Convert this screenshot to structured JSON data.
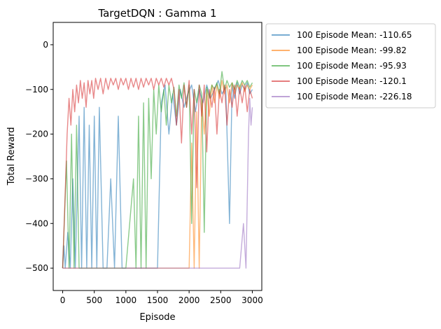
{
  "chart_data": {
    "type": "line",
    "title": "TargetDQN : Gamma 1",
    "xlabel": "Episode",
    "ylabel": "Total Reward",
    "xlim": [
      -150,
      3150
    ],
    "ylim": [
      -550,
      50
    ],
    "xticks": [
      0,
      500,
      1000,
      1500,
      2000,
      2500,
      3000
    ],
    "yticks": [
      0,
      -100,
      -200,
      -300,
      -400,
      -500
    ],
    "legend_position": "outside-right",
    "series": [
      {
        "name": "100 Episode Mean: -110.65",
        "color": "#1f77b4",
        "points": [
          [
            0,
            -500
          ],
          [
            20,
            -450
          ],
          [
            40,
            -500
          ],
          [
            80,
            -420
          ],
          [
            120,
            -500
          ],
          [
            160,
            -300
          ],
          [
            200,
            -500
          ],
          [
            260,
            -160
          ],
          [
            300,
            -500
          ],
          [
            340,
            -140
          ],
          [
            380,
            -500
          ],
          [
            420,
            -180
          ],
          [
            460,
            -500
          ],
          [
            500,
            -160
          ],
          [
            540,
            -500
          ],
          [
            580,
            -140
          ],
          [
            640,
            -500
          ],
          [
            700,
            -500
          ],
          [
            760,
            -300
          ],
          [
            820,
            -500
          ],
          [
            880,
            -160
          ],
          [
            940,
            -500
          ],
          [
            1000,
            -500
          ],
          [
            1100,
            -500
          ],
          [
            1200,
            -500
          ],
          [
            1300,
            -500
          ],
          [
            1400,
            -500
          ],
          [
            1500,
            -500
          ],
          [
            1560,
            -130
          ],
          [
            1620,
            -90
          ],
          [
            1680,
            -200
          ],
          [
            1740,
            -110
          ],
          [
            1800,
            -180
          ],
          [
            1860,
            -100
          ],
          [
            1920,
            -140
          ],
          [
            1980,
            -110
          ],
          [
            2040,
            -90
          ],
          [
            2100,
            -150
          ],
          [
            2160,
            -100
          ],
          [
            2220,
            -130
          ],
          [
            2280,
            -90
          ],
          [
            2340,
            -120
          ],
          [
            2400,
            -100
          ],
          [
            2460,
            -80
          ],
          [
            2520,
            -110
          ],
          [
            2580,
            -95
          ],
          [
            2640,
            -400
          ],
          [
            2680,
            -90
          ],
          [
            2720,
            -120
          ],
          [
            2760,
            -85
          ],
          [
            2800,
            -110
          ],
          [
            2840,
            -90
          ],
          [
            2880,
            -100
          ],
          [
            2920,
            -85
          ],
          [
            2960,
            -110
          ],
          [
            3000,
            -100
          ]
        ]
      },
      {
        "name": "100 Episode Mean: -99.82",
        "color": "#ff7f0e",
        "points": [
          [
            0,
            -500
          ],
          [
            200,
            -500
          ],
          [
            400,
            -500
          ],
          [
            600,
            -500
          ],
          [
            800,
            -500
          ],
          [
            1000,
            -500
          ],
          [
            1200,
            -500
          ],
          [
            1400,
            -500
          ],
          [
            1600,
            -500
          ],
          [
            1800,
            -500
          ],
          [
            1900,
            -500
          ],
          [
            2000,
            -500
          ],
          [
            2040,
            -220
          ],
          [
            2080,
            -500
          ],
          [
            2120,
            -150
          ],
          [
            2160,
            -500
          ],
          [
            2200,
            -120
          ],
          [
            2240,
            -200
          ],
          [
            2280,
            -100
          ],
          [
            2320,
            -160
          ],
          [
            2360,
            -90
          ],
          [
            2400,
            -130
          ],
          [
            2440,
            -90
          ],
          [
            2480,
            -120
          ],
          [
            2520,
            -80
          ],
          [
            2560,
            -110
          ],
          [
            2600,
            -90
          ],
          [
            2640,
            -130
          ],
          [
            2680,
            -85
          ],
          [
            2720,
            -110
          ],
          [
            2760,
            -90
          ],
          [
            2800,
            -100
          ],
          [
            2840,
            -85
          ],
          [
            2880,
            -105
          ],
          [
            2920,
            -90
          ],
          [
            2960,
            -100
          ],
          [
            3000,
            -90
          ]
        ]
      },
      {
        "name": "100 Episode Mean: -95.93",
        "color": "#2ca02c",
        "points": [
          [
            0,
            -500
          ],
          [
            60,
            -260
          ],
          [
            100,
            -500
          ],
          [
            140,
            -200
          ],
          [
            180,
            -500
          ],
          [
            220,
            -180
          ],
          [
            260,
            -500
          ],
          [
            300,
            -500
          ],
          [
            500,
            -500
          ],
          [
            700,
            -500
          ],
          [
            900,
            -500
          ],
          [
            1000,
            -500
          ],
          [
            1120,
            -300
          ],
          [
            1160,
            -500
          ],
          [
            1200,
            -160
          ],
          [
            1240,
            -500
          ],
          [
            1280,
            -130
          ],
          [
            1320,
            -500
          ],
          [
            1360,
            -120
          ],
          [
            1400,
            -300
          ],
          [
            1440,
            -100
          ],
          [
            1480,
            -200
          ],
          [
            1520,
            -90
          ],
          [
            1560,
            -150
          ],
          [
            1600,
            -100
          ],
          [
            1640,
            -180
          ],
          [
            1680,
            -90
          ],
          [
            1720,
            -130
          ],
          [
            1760,
            -95
          ],
          [
            1800,
            -160
          ],
          [
            1840,
            -90
          ],
          [
            1880,
            -120
          ],
          [
            1920,
            -85
          ],
          [
            1960,
            -140
          ],
          [
            2000,
            -90
          ],
          [
            2040,
            -400
          ],
          [
            2080,
            -100
          ],
          [
            2120,
            -130
          ],
          [
            2160,
            -90
          ],
          [
            2200,
            -110
          ],
          [
            2240,
            -420
          ],
          [
            2280,
            -95
          ],
          [
            2320,
            -120
          ],
          [
            2360,
            -90
          ],
          [
            2400,
            -100
          ],
          [
            2440,
            -85
          ],
          [
            2480,
            -110
          ],
          [
            2520,
            -60
          ],
          [
            2560,
            -100
          ],
          [
            2600,
            -80
          ],
          [
            2640,
            -95
          ],
          [
            2680,
            -85
          ],
          [
            2720,
            -100
          ],
          [
            2760,
            -80
          ],
          [
            2800,
            -95
          ],
          [
            2840,
            -80
          ],
          [
            2880,
            -90
          ],
          [
            2920,
            -80
          ],
          [
            2960,
            -95
          ],
          [
            3000,
            -85
          ]
        ]
      },
      {
        "name": "100 Episode Mean: -120.1",
        "color": "#d62728",
        "points": [
          [
            0,
            -500
          ],
          [
            40,
            -330
          ],
          [
            70,
            -200
          ],
          [
            100,
            -120
          ],
          [
            130,
            -180
          ],
          [
            160,
            -100
          ],
          [
            190,
            -150
          ],
          [
            220,
            -90
          ],
          [
            250,
            -130
          ],
          [
            280,
            -80
          ],
          [
            310,
            -120
          ],
          [
            340,
            -85
          ],
          [
            370,
            -140
          ],
          [
            400,
            -80
          ],
          [
            430,
            -110
          ],
          [
            460,
            -80
          ],
          [
            490,
            -120
          ],
          [
            520,
            -75
          ],
          [
            560,
            -100
          ],
          [
            600,
            -75
          ],
          [
            640,
            -110
          ],
          [
            680,
            -75
          ],
          [
            720,
            -100
          ],
          [
            760,
            -75
          ],
          [
            800,
            -90
          ],
          [
            840,
            -75
          ],
          [
            880,
            -100
          ],
          [
            920,
            -75
          ],
          [
            960,
            -90
          ],
          [
            1000,
            -75
          ],
          [
            1040,
            -100
          ],
          [
            1080,
            -75
          ],
          [
            1120,
            -95
          ],
          [
            1160,
            -75
          ],
          [
            1200,
            -100
          ],
          [
            1240,
            -75
          ],
          [
            1280,
            -95
          ],
          [
            1320,
            -75
          ],
          [
            1360,
            -90
          ],
          [
            1400,
            -75
          ],
          [
            1440,
            -100
          ],
          [
            1480,
            -75
          ],
          [
            1520,
            -90
          ],
          [
            1560,
            -75
          ],
          [
            1600,
            -95
          ],
          [
            1640,
            -75
          ],
          [
            1680,
            -90
          ],
          [
            1720,
            -75
          ],
          [
            1760,
            -100
          ],
          [
            1800,
            -180
          ],
          [
            1840,
            -100
          ],
          [
            1880,
            -220
          ],
          [
            1920,
            -90
          ],
          [
            1960,
            -140
          ],
          [
            2000,
            -80
          ],
          [
            2040,
            -200
          ],
          [
            2080,
            -100
          ],
          [
            2120,
            -320
          ],
          [
            2160,
            -90
          ],
          [
            2200,
            -160
          ],
          [
            2240,
            -90
          ],
          [
            2280,
            -240
          ],
          [
            2320,
            -100
          ],
          [
            2360,
            -140
          ],
          [
            2400,
            -95
          ],
          [
            2440,
            -200
          ],
          [
            2480,
            -100
          ],
          [
            2520,
            -130
          ],
          [
            2560,
            -90
          ],
          [
            2600,
            -180
          ],
          [
            2640,
            -100
          ],
          [
            2680,
            -140
          ],
          [
            2720,
            -90
          ],
          [
            2760,
            -160
          ],
          [
            2800,
            -95
          ],
          [
            2840,
            -130
          ],
          [
            2880,
            -90
          ],
          [
            2920,
            -150
          ],
          [
            2960,
            -100
          ],
          [
            3000,
            -120
          ]
        ]
      },
      {
        "name": "100 Episode Mean: -226.18",
        "color": "#9467bd",
        "points": [
          [
            0,
            -500
          ],
          [
            500,
            -500
          ],
          [
            1000,
            -500
          ],
          [
            1500,
            -500
          ],
          [
            2000,
            -500
          ],
          [
            2500,
            -500
          ],
          [
            2800,
            -500
          ],
          [
            2860,
            -400
          ],
          [
            2900,
            -500
          ],
          [
            2940,
            -200
          ],
          [
            2960,
            -120
          ],
          [
            2980,
            -180
          ],
          [
            3000,
            -140
          ]
        ]
      }
    ]
  }
}
